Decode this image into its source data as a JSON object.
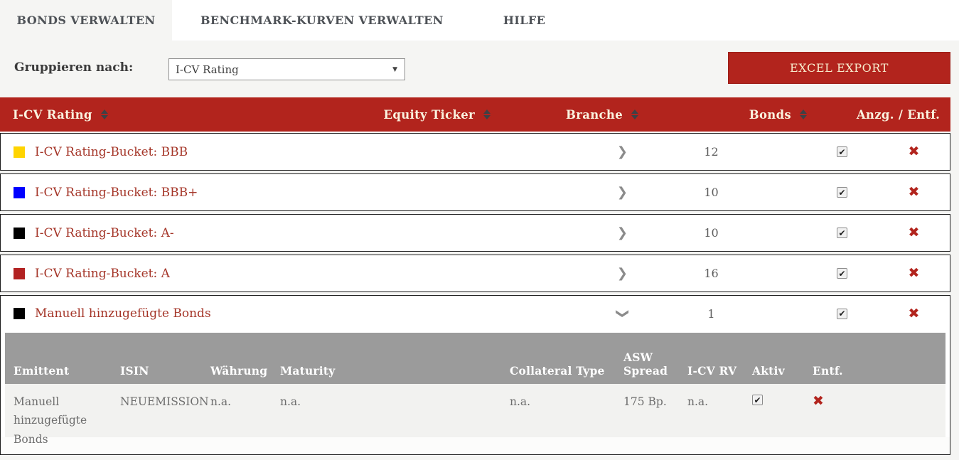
{
  "tabs": [
    {
      "label": "BONDS VERWALTEN",
      "active": true
    },
    {
      "label": "BENCHMARK-KURVEN VERWALTEN",
      "active": false
    },
    {
      "label": "HILFE",
      "active": false
    }
  ],
  "toolbar": {
    "group_by_label": "Gruppieren nach:",
    "group_by_value": "I-CV Rating",
    "excel_export_label": "EXCEL EXPORT"
  },
  "icons": {
    "chevron_glyph": "❯",
    "check_glyph": "✔",
    "remove_glyph": "✖",
    "select_arrow_glyph": "▼"
  },
  "colors": {
    "accent_red": "#b2241d",
    "bucket_link_red": "#a53629",
    "subheader_gray": "#9b9b9b",
    "page_background": "#f5f5f3"
  },
  "table": {
    "headers": {
      "rating": "I-CV Rating",
      "equity_ticker": "Equity Ticker",
      "branche": "Branche",
      "bonds": "Bonds",
      "anzg_entf": "Anzg. / Entf."
    },
    "rows": [
      {
        "color": "#ffd400",
        "label": "I-CV Rating-Bucket: BBB",
        "bonds": "12",
        "expanded": false,
        "checked": true
      },
      {
        "color": "#0000ff",
        "label": "I-CV Rating-Bucket: BBB+",
        "bonds": "10",
        "expanded": false,
        "checked": true
      },
      {
        "color": "#000000",
        "label": "I-CV Rating-Bucket: A-",
        "bonds": "10",
        "expanded": false,
        "checked": true
      },
      {
        "color": "#b22222",
        "label": "I-CV Rating-Bucket: A",
        "bonds": "16",
        "expanded": false,
        "checked": true
      },
      {
        "color": "#000000",
        "label": "Manuell hinzugefügte Bonds",
        "bonds": "1",
        "expanded": true,
        "checked": true
      }
    ],
    "subtable": {
      "headers": [
        "Emittent",
        "ISIN",
        "Währung",
        "Maturity",
        "Collateral Type",
        "ASW Spread",
        "I-CV RV",
        "Aktiv",
        "Entf."
      ],
      "rows": [
        {
          "emittent": "Manuell hinzugefügte Bonds",
          "isin": "NEUEMISSION",
          "waehrung": "n.a.",
          "maturity": "n.a.",
          "collateral_type": "n.a.",
          "asw_spread": "175 Bp.",
          "icv_rv": "n.a.",
          "aktiv_checked": true
        }
      ]
    }
  }
}
